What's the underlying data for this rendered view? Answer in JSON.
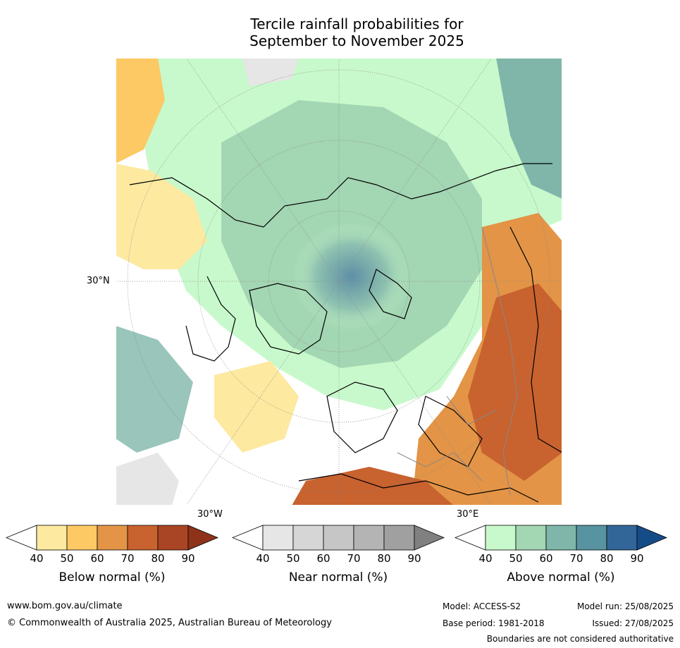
{
  "title": {
    "line1": "Tercile rainfall probabilities for",
    "line2": "September to November 2025"
  },
  "map": {
    "graticule_labels": {
      "lat_30n": "30°N",
      "lon_30w": "30°W",
      "lon_30e": "30°E"
    }
  },
  "colorbars": [
    {
      "label": "Below normal (%)",
      "ticks": [
        "40",
        "50",
        "60",
        "70",
        "80",
        "90"
      ],
      "under_color": "#ffffff",
      "colors": [
        "#fde9a0",
        "#fcc964",
        "#e39446",
        "#c8622f",
        "#a94524"
      ],
      "over_color": "#8e3319"
    },
    {
      "label": "Near normal (%)",
      "ticks": [
        "40",
        "50",
        "60",
        "70",
        "80",
        "90"
      ],
      "under_color": "#ffffff",
      "colors": [
        "#e6e6e6",
        "#d6d6d6",
        "#c6c6c6",
        "#b4b4b4",
        "#a0a0a0"
      ],
      "over_color": "#808080"
    },
    {
      "label": "Above normal (%)",
      "ticks": [
        "40",
        "50",
        "60",
        "70",
        "80",
        "90"
      ],
      "under_color": "#ffffff",
      "colors": [
        "#c8f9cc",
        "#a3d6b3",
        "#7fb6a9",
        "#5893a1",
        "#326699"
      ],
      "over_color": "#154c87"
    }
  ],
  "footer": {
    "website": "www.bom.gov.au/climate",
    "copyright": "© Commonwealth of Australia 2025, Australian Bureau of Meteorology",
    "model": "Model: ACCESS-S2",
    "base_period": "Base period: 1981-2018",
    "model_run": "Model run: 25/08/2025",
    "issued": "Issued: 27/08/2025",
    "disclaimer": "Boundaries are not considered authoritative"
  }
}
